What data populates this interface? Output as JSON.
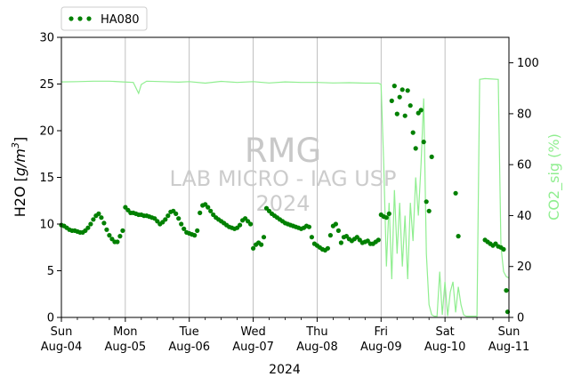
{
  "chart_data": {
    "type": "scatter",
    "title": "",
    "xlabel": "2024",
    "ylabel_left": "H2O [g/m³]",
    "ylabel_left_parts": [
      "H2O [",
      "g/m",
      "3",
      "]"
    ],
    "ylabel_right": "CO2_sig (%)",
    "xlim": [
      "2024-08-04T00:00",
      "2024-08-11T00:00"
    ],
    "ylim_left": [
      0,
      30
    ],
    "ylim_right": [
      0,
      110
    ],
    "grid": "vertical",
    "legend_position": "top-left, above plot",
    "x_ticks": [
      {
        "day": "Sun",
        "date": "Aug-04",
        "t": "2024-08-04"
      },
      {
        "day": "Mon",
        "date": "Aug-05",
        "t": "2024-08-05"
      },
      {
        "day": "Tue",
        "date": "Aug-06",
        "t": "2024-08-06"
      },
      {
        "day": "Wed",
        "date": "Aug-07",
        "t": "2024-08-07"
      },
      {
        "day": "Thu",
        "date": "Aug-08",
        "t": "2024-08-08"
      },
      {
        "day": "Fri",
        "date": "Aug-09",
        "t": "2024-08-09"
      },
      {
        "day": "Sat",
        "date": "Aug-10",
        "t": "2024-08-10"
      },
      {
        "day": "Sun",
        "date": "Aug-11",
        "t": "2024-08-11"
      }
    ],
    "y_ticks_left": [
      0,
      5,
      10,
      15,
      20,
      25,
      30
    ],
    "y_ticks_right": [
      0,
      20,
      40,
      60,
      80,
      100
    ],
    "watermark": [
      "RMG",
      "LAB MICRO - IAG USP",
      "2024"
    ],
    "colors": {
      "h2o": "#008000",
      "co2": "#90ee90"
    },
    "series": [
      {
        "name": "HA080",
        "axis": "left",
        "style": "dots",
        "points": [
          [
            "2024-08-04T00:00",
            9.9
          ],
          [
            "2024-08-04T01:00",
            9.8
          ],
          [
            "2024-08-04T02:00",
            9.6
          ],
          [
            "2024-08-04T03:00",
            9.4
          ],
          [
            "2024-08-04T04:00",
            9.3
          ],
          [
            "2024-08-04T05:00",
            9.3
          ],
          [
            "2024-08-04T06:00",
            9.2
          ],
          [
            "2024-08-04T07:00",
            9.1
          ],
          [
            "2024-08-04T08:00",
            9.1
          ],
          [
            "2024-08-04T09:00",
            9.3
          ],
          [
            "2024-08-04T10:00",
            9.6
          ],
          [
            "2024-08-04T11:00",
            10.0
          ],
          [
            "2024-08-04T12:00",
            10.5
          ],
          [
            "2024-08-04T13:00",
            10.9
          ],
          [
            "2024-08-04T14:00",
            11.1
          ],
          [
            "2024-08-04T15:00",
            10.7
          ],
          [
            "2024-08-04T16:00",
            10.1
          ],
          [
            "2024-08-04T17:00",
            9.4
          ],
          [
            "2024-08-04T18:00",
            8.8
          ],
          [
            "2024-08-04T19:00",
            8.4
          ],
          [
            "2024-08-04T20:00",
            8.1
          ],
          [
            "2024-08-04T21:00",
            8.1
          ],
          [
            "2024-08-04T22:00",
            8.7
          ],
          [
            "2024-08-04T23:00",
            9.3
          ],
          [
            "2024-08-05T00:00",
            11.8
          ],
          [
            "2024-08-05T01:00",
            11.5
          ],
          [
            "2024-08-05T02:00",
            11.2
          ],
          [
            "2024-08-05T03:00",
            11.2
          ],
          [
            "2024-08-05T04:00",
            11.1
          ],
          [
            "2024-08-05T05:00",
            11.0
          ],
          [
            "2024-08-05T06:00",
            11.0
          ],
          [
            "2024-08-05T07:00",
            10.9
          ],
          [
            "2024-08-05T08:00",
            10.9
          ],
          [
            "2024-08-05T09:00",
            10.8
          ],
          [
            "2024-08-05T10:00",
            10.7
          ],
          [
            "2024-08-05T11:00",
            10.6
          ],
          [
            "2024-08-05T12:00",
            10.3
          ],
          [
            "2024-08-05T13:00",
            10.0
          ],
          [
            "2024-08-05T14:00",
            10.2
          ],
          [
            "2024-08-05T15:00",
            10.5
          ],
          [
            "2024-08-05T16:00",
            10.9
          ],
          [
            "2024-08-05T17:00",
            11.3
          ],
          [
            "2024-08-05T18:00",
            11.4
          ],
          [
            "2024-08-05T19:00",
            11.1
          ],
          [
            "2024-08-05T20:00",
            10.6
          ],
          [
            "2024-08-05T21:00",
            10.0
          ],
          [
            "2024-08-05T22:00",
            9.5
          ],
          [
            "2024-08-05T23:00",
            9.1
          ],
          [
            "2024-08-06T00:00",
            9.0
          ],
          [
            "2024-08-06T01:00",
            8.9
          ],
          [
            "2024-08-06T02:00",
            8.8
          ],
          [
            "2024-08-06T03:00",
            9.3
          ],
          [
            "2024-08-06T04:00",
            11.2
          ],
          [
            "2024-08-06T05:00",
            12.0
          ],
          [
            "2024-08-06T06:00",
            12.1
          ],
          [
            "2024-08-06T07:00",
            11.8
          ],
          [
            "2024-08-06T08:00",
            11.4
          ],
          [
            "2024-08-06T09:00",
            11.0
          ],
          [
            "2024-08-06T10:00",
            10.7
          ],
          [
            "2024-08-06T11:00",
            10.5
          ],
          [
            "2024-08-06T12:00",
            10.3
          ],
          [
            "2024-08-06T13:00",
            10.1
          ],
          [
            "2024-08-06T14:00",
            9.9
          ],
          [
            "2024-08-06T15:00",
            9.7
          ],
          [
            "2024-08-06T16:00",
            9.6
          ],
          [
            "2024-08-06T17:00",
            9.5
          ],
          [
            "2024-08-06T18:00",
            9.6
          ],
          [
            "2024-08-06T19:00",
            9.9
          ],
          [
            "2024-08-06T20:00",
            10.4
          ],
          [
            "2024-08-06T21:00",
            10.6
          ],
          [
            "2024-08-06T22:00",
            10.3
          ],
          [
            "2024-08-06T23:00",
            10.0
          ],
          [
            "2024-08-07T00:00",
            7.4
          ],
          [
            "2024-08-07T01:00",
            7.8
          ],
          [
            "2024-08-07T02:00",
            8.0
          ],
          [
            "2024-08-07T03:00",
            7.8
          ],
          [
            "2024-08-07T04:00",
            8.6
          ],
          [
            "2024-08-07T05:00",
            11.7
          ],
          [
            "2024-08-07T06:00",
            11.4
          ],
          [
            "2024-08-07T07:00",
            11.1
          ],
          [
            "2024-08-07T08:00",
            10.9
          ],
          [
            "2024-08-07T09:00",
            10.7
          ],
          [
            "2024-08-07T10:00",
            10.5
          ],
          [
            "2024-08-07T11:00",
            10.3
          ],
          [
            "2024-08-07T12:00",
            10.1
          ],
          [
            "2024-08-07T13:00",
            10.0
          ],
          [
            "2024-08-07T14:00",
            9.9
          ],
          [
            "2024-08-07T15:00",
            9.8
          ],
          [
            "2024-08-07T16:00",
            9.7
          ],
          [
            "2024-08-07T17:00",
            9.6
          ],
          [
            "2024-08-07T18:00",
            9.5
          ],
          [
            "2024-08-07T19:00",
            9.6
          ],
          [
            "2024-08-07T20:00",
            9.8
          ],
          [
            "2024-08-07T21:00",
            9.7
          ],
          [
            "2024-08-07T22:00",
            8.6
          ],
          [
            "2024-08-07T23:00",
            7.9
          ],
          [
            "2024-08-08T00:00",
            7.7
          ],
          [
            "2024-08-08T01:00",
            7.5
          ],
          [
            "2024-08-08T02:00",
            7.3
          ],
          [
            "2024-08-08T03:00",
            7.2
          ],
          [
            "2024-08-08T04:00",
            7.4
          ],
          [
            "2024-08-08T05:00",
            8.8
          ],
          [
            "2024-08-08T06:00",
            9.8
          ],
          [
            "2024-08-08T07:00",
            10.0
          ],
          [
            "2024-08-08T08:00",
            9.3
          ],
          [
            "2024-08-08T09:00",
            8.0
          ],
          [
            "2024-08-08T10:00",
            8.6
          ],
          [
            "2024-08-08T11:00",
            8.7
          ],
          [
            "2024-08-08T12:00",
            8.4
          ],
          [
            "2024-08-08T13:00",
            8.2
          ],
          [
            "2024-08-08T14:00",
            8.4
          ],
          [
            "2024-08-08T15:00",
            8.6
          ],
          [
            "2024-08-08T16:00",
            8.3
          ],
          [
            "2024-08-08T17:00",
            8.0
          ],
          [
            "2024-08-08T18:00",
            8.1
          ],
          [
            "2024-08-08T19:00",
            8.2
          ],
          [
            "2024-08-08T20:00",
            7.9
          ],
          [
            "2024-08-08T21:00",
            7.9
          ],
          [
            "2024-08-08T22:00",
            8.1
          ],
          [
            "2024-08-08T23:00",
            8.3
          ],
          [
            "2024-08-09T00:00",
            11.0
          ],
          [
            "2024-08-09T01:00",
            10.8
          ],
          [
            "2024-08-09T02:00",
            10.7
          ],
          [
            "2024-08-09T03:00",
            11.1
          ],
          [
            "2024-08-09T04:00",
            23.2
          ],
          [
            "2024-08-09T05:00",
            24.8
          ],
          [
            "2024-08-09T06:00",
            21.8
          ],
          [
            "2024-08-09T07:00",
            23.6
          ],
          [
            "2024-08-09T08:00",
            24.4
          ],
          [
            "2024-08-09T09:00",
            21.6
          ],
          [
            "2024-08-09T10:00",
            24.3
          ],
          [
            "2024-08-09T11:00",
            22.7
          ],
          [
            "2024-08-09T12:00",
            19.8
          ],
          [
            "2024-08-09T13:00",
            18.1
          ],
          [
            "2024-08-09T14:00",
            21.9
          ],
          [
            "2024-08-09T15:00",
            22.2
          ],
          [
            "2024-08-09T16:00",
            18.8
          ],
          [
            "2024-08-09T17:00",
            12.4
          ],
          [
            "2024-08-09T18:00",
            11.4
          ],
          [
            "2024-08-09T19:00",
            17.2
          ],
          [
            "2024-08-10T04:00",
            13.3
          ],
          [
            "2024-08-10T05:00",
            8.7
          ],
          [
            "2024-08-10T15:00",
            8.3
          ],
          [
            "2024-08-10T16:00",
            8.1
          ],
          [
            "2024-08-10T17:00",
            7.9
          ],
          [
            "2024-08-10T18:00",
            7.7
          ],
          [
            "2024-08-10T19:00",
            7.9
          ],
          [
            "2024-08-10T20:00",
            7.6
          ],
          [
            "2024-08-10T21:00",
            7.5
          ],
          [
            "2024-08-10T22:00",
            7.3
          ],
          [
            "2024-08-10T23:00",
            2.9
          ],
          [
            "2024-08-10T23:30",
            0.6
          ]
        ]
      },
      {
        "name": "",
        "axis": "right",
        "style": "line",
        "points": [
          [
            "2024-08-04T00:00",
            92.5
          ],
          [
            "2024-08-04T06:00",
            92.6
          ],
          [
            "2024-08-04T12:00",
            92.8
          ],
          [
            "2024-08-04T18:00",
            92.8
          ],
          [
            "2024-08-04T23:00",
            92.5
          ],
          [
            "2024-08-05T03:00",
            92.3
          ],
          [
            "2024-08-05T05:00",
            88.0
          ],
          [
            "2024-08-05T06:00",
            91.5
          ],
          [
            "2024-08-05T08:00",
            92.8
          ],
          [
            "2024-08-05T14:00",
            92.6
          ],
          [
            "2024-08-05T20:00",
            92.4
          ],
          [
            "2024-08-06T00:00",
            92.6
          ],
          [
            "2024-08-06T06:00",
            92.0
          ],
          [
            "2024-08-06T12:00",
            92.7
          ],
          [
            "2024-08-06T18:00",
            92.3
          ],
          [
            "2024-08-07T00:00",
            92.6
          ],
          [
            "2024-08-07T06:00",
            92.1
          ],
          [
            "2024-08-07T12:00",
            92.5
          ],
          [
            "2024-08-07T18:00",
            92.3
          ],
          [
            "2024-08-08T00:00",
            92.3
          ],
          [
            "2024-08-08T06:00",
            92.1
          ],
          [
            "2024-08-08T12:00",
            92.2
          ],
          [
            "2024-08-08T18:00",
            92.0
          ],
          [
            "2024-08-08T23:00",
            92.0
          ],
          [
            "2024-08-09T00:00",
            91.5
          ],
          [
            "2024-08-09T01:00",
            60.0
          ],
          [
            "2024-08-09T02:00",
            20.0
          ],
          [
            "2024-08-09T03:00",
            45.0
          ],
          [
            "2024-08-09T04:00",
            15.0
          ],
          [
            "2024-08-09T05:00",
            50.0
          ],
          [
            "2024-08-09T06:00",
            25.0
          ],
          [
            "2024-08-09T07:00",
            45.0
          ],
          [
            "2024-08-09T08:00",
            20.0
          ],
          [
            "2024-08-09T09:00",
            40.0
          ],
          [
            "2024-08-09T10:00",
            15.0
          ],
          [
            "2024-08-09T11:00",
            45.0
          ],
          [
            "2024-08-09T12:00",
            30.0
          ],
          [
            "2024-08-09T13:00",
            55.0
          ],
          [
            "2024-08-09T14:00",
            40.0
          ],
          [
            "2024-08-09T15:00",
            60.0
          ],
          [
            "2024-08-09T16:00",
            86.0
          ],
          [
            "2024-08-09T17:00",
            25.0
          ],
          [
            "2024-08-09T18:00",
            5.0
          ],
          [
            "2024-08-09T19:00",
            1.0
          ],
          [
            "2024-08-09T20:00",
            0.5
          ],
          [
            "2024-08-09T21:00",
            0.5
          ],
          [
            "2024-08-09T22:00",
            18.0
          ],
          [
            "2024-08-09T23:00",
            1.0
          ],
          [
            "2024-08-10T00:00",
            14.0
          ],
          [
            "2024-08-10T01:00",
            0.5
          ],
          [
            "2024-08-10T02:00",
            10.0
          ],
          [
            "2024-08-10T03:00",
            14.0
          ],
          [
            "2024-08-10T04:00",
            2.0
          ],
          [
            "2024-08-10T05:00",
            12.0
          ],
          [
            "2024-08-10T06:00",
            5.0
          ],
          [
            "2024-08-10T07:00",
            1.0
          ],
          [
            "2024-08-10T08:00",
            0.5
          ],
          [
            "2024-08-10T12:00",
            0.5
          ],
          [
            "2024-08-10T13:00",
            93.5
          ],
          [
            "2024-08-10T15:00",
            93.8
          ],
          [
            "2024-08-10T20:00",
            93.5
          ],
          [
            "2024-08-10T21:00",
            28.0
          ],
          [
            "2024-08-10T22:00",
            18.0
          ],
          [
            "2024-08-10T23:00",
            16.0
          ],
          [
            "2024-08-11T00:00",
            15.5
          ]
        ]
      }
    ]
  }
}
